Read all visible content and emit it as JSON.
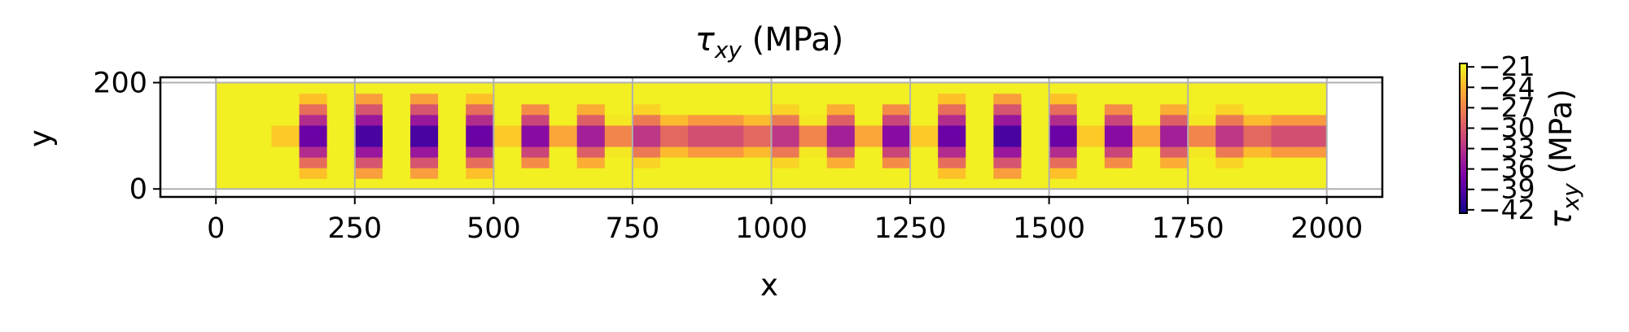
{
  "chart_data": {
    "type": "heatmap",
    "title": {
      "base": "τ",
      "sub": "xy",
      "unit": " (MPa)"
    },
    "xlabel": "x",
    "ylabel": "y",
    "xlim": [
      -100,
      2100
    ],
    "ylim": [
      -15,
      210
    ],
    "x_ticks": [
      {
        "value": 0,
        "label": "0"
      },
      {
        "value": 250,
        "label": "250"
      },
      {
        "value": 500,
        "label": "500"
      },
      {
        "value": 750,
        "label": "750"
      },
      {
        "value": 1000,
        "label": "1000"
      },
      {
        "value": 1250,
        "label": "1250"
      },
      {
        "value": 1500,
        "label": "1500"
      },
      {
        "value": 1750,
        "label": "1750"
      },
      {
        "value": 2000,
        "label": "2000"
      }
    ],
    "y_ticks": [
      {
        "value": 0,
        "label": "0"
      },
      {
        "value": 200,
        "label": "200"
      }
    ],
    "domain": {
      "x": [
        0,
        2000
      ],
      "y": [
        0,
        200
      ]
    },
    "grid": true,
    "colormap": "plasma",
    "colorbar": {
      "label": {
        "base": "τ",
        "sub": "xy",
        "unit": " (MPa)"
      },
      "range": [
        -42.5,
        -20.5
      ],
      "ticks": [
        {
          "value": -21,
          "label": "−21"
        },
        {
          "value": -24,
          "label": "−24"
        },
        {
          "value": -27,
          "label": "−27"
        },
        {
          "value": -30,
          "label": "−30"
        },
        {
          "value": -33,
          "label": "−33"
        },
        {
          "value": -36,
          "label": "−36"
        },
        {
          "value": -39,
          "label": "−39"
        },
        {
          "value": -42,
          "label": "−42"
        }
      ],
      "placement": "right"
    },
    "field": {
      "nx": 40,
      "ny": 10,
      "min_centers_x": [
        170,
        275,
        375,
        480,
        585,
        690,
        795,
        900,
        1005,
        1110,
        1215,
        1320,
        1425,
        1530,
        1635,
        1740,
        1845,
        1950
      ],
      "center_y": 100,
      "max_value": -21,
      "min_value": -42
    }
  }
}
